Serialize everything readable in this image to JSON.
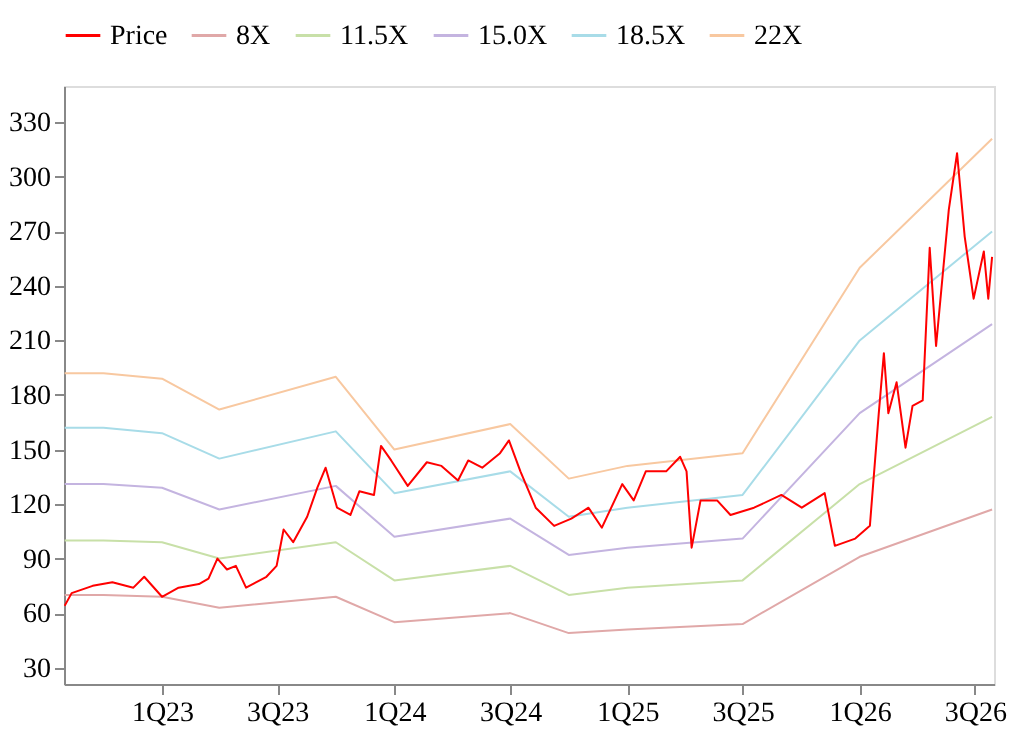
{
  "chart_data": {
    "type": "line",
    "xlim": [
      "2022-07-31",
      "2026-07-31"
    ],
    "xticks": [
      {
        "value": "2023-01-01",
        "label": "1Q23"
      },
      {
        "value": "2023-07-01",
        "label": "3Q23"
      },
      {
        "value": "2024-01-01",
        "label": "1Q24"
      },
      {
        "value": "2024-07-01",
        "label": "3Q24"
      },
      {
        "value": "2025-01-01",
        "label": "1Q25"
      },
      {
        "value": "2025-07-01",
        "label": "3Q25"
      },
      {
        "value": "2026-01-01",
        "label": "1Q26"
      },
      {
        "value": "2026-07-01",
        "label": "3Q26"
      }
    ],
    "ylim": [
      21,
      350
    ],
    "yticks": [
      30,
      60,
      90,
      120,
      150,
      180,
      210,
      240,
      270,
      300,
      330
    ],
    "grid": false,
    "legend": "top",
    "marker": "none",
    "line_style": "solid",
    "series": [
      {
        "name": "Price",
        "color": "#ff0000",
        "x": [
          "2022-08-01",
          "2022-08-12",
          "2022-09-14",
          "2022-10-15",
          "2022-11-17",
          "2022-12-04",
          "2023-01-01",
          "2023-01-27",
          "2023-02-28",
          "2023-03-15",
          "2023-03-29",
          "2023-04-13",
          "2023-04-27",
          "2023-05-13",
          "2023-06-14",
          "2023-06-30",
          "2023-07-11",
          "2023-07-26",
          "2023-08-17",
          "2023-09-02",
          "2023-09-15",
          "2023-10-03",
          "2023-10-24",
          "2023-11-07",
          "2023-11-30",
          "2023-12-11",
          "2023-12-27",
          "2024-01-22",
          "2024-02-21",
          "2024-03-15",
          "2024-04-10",
          "2024-04-26",
          "2024-05-18",
          "2024-06-15",
          "2024-06-29",
          "2024-07-17",
          "2024-08-10",
          "2024-09-08",
          "2024-10-05",
          "2024-11-01",
          "2024-11-22",
          "2024-12-24",
          "2025-01-11",
          "2025-01-30",
          "2025-03-03",
          "2025-03-25",
          "2025-04-04",
          "2025-04-12",
          "2025-04-26",
          "2025-05-22",
          "2025-06-12",
          "2025-07-19",
          "2025-08-31",
          "2025-10-02",
          "2025-11-07",
          "2025-11-23",
          "2025-12-25",
          "2026-01-17",
          "2026-01-31",
          "2026-02-08",
          "2026-02-15",
          "2026-02-28",
          "2026-03-14",
          "2026-03-25",
          "2026-04-10",
          "2026-04-21",
          "2026-05-01",
          "2026-05-21",
          "2026-06-03",
          "2026-06-15",
          "2026-06-29",
          "2026-07-15",
          "2026-07-22",
          "2026-07-28"
        ],
        "values": [
          64,
          71,
          75,
          77,
          74,
          80,
          69,
          74,
          76,
          79,
          90,
          84,
          86,
          74,
          80,
          86,
          106,
          99,
          113,
          129,
          140,
          118,
          114,
          127,
          125,
          152,
          144,
          130,
          143,
          141,
          133,
          144,
          140,
          148,
          155,
          138,
          118,
          108,
          112,
          118,
          107,
          131,
          122,
          138,
          138,
          146,
          138,
          96,
          122,
          122,
          114,
          118,
          125,
          118,
          126,
          97,
          101,
          108,
          170,
          203,
          170,
          187,
          151,
          174,
          177,
          261,
          207,
          282,
          313,
          267,
          233,
          259,
          233,
          256
        ]
      },
      {
        "name": "8X",
        "color": "#e0a8a8",
        "values": [
          70,
          70,
          69,
          63,
          69,
          55,
          60,
          49,
          51,
          54,
          91,
          117
        ]
      },
      {
        "name": "11.5X",
        "color": "#c8e0a8",
        "values": [
          100,
          100,
          99,
          90,
          99,
          78,
          86,
          70,
          74,
          78,
          131,
          168
        ]
      },
      {
        "name": "15.0X",
        "color": "#c4b4e0",
        "values": [
          131,
          131,
          129,
          117,
          130,
          102,
          112,
          92,
          96,
          101,
          170,
          219
        ]
      },
      {
        "name": "18.5X",
        "color": "#a8dce8",
        "values": [
          162,
          162,
          159,
          145,
          160,
          126,
          138,
          113,
          118,
          125,
          210,
          270
        ]
      },
      {
        "name": "22X",
        "color": "#f8c8a0",
        "values": [
          192,
          192,
          189,
          172,
          190,
          150,
          164,
          134,
          141,
          148,
          250,
          321
        ]
      }
    ],
    "x": [
      "2022-08-01",
      "2022-10-01",
      "2023-01-01",
      "2023-04-01",
      "2023-10-01",
      "2024-01-01",
      "2024-07-01",
      "2024-10-01",
      "2025-01-01",
      "2025-07-01",
      "2026-01-01",
      "2026-07-28"
    ]
  }
}
